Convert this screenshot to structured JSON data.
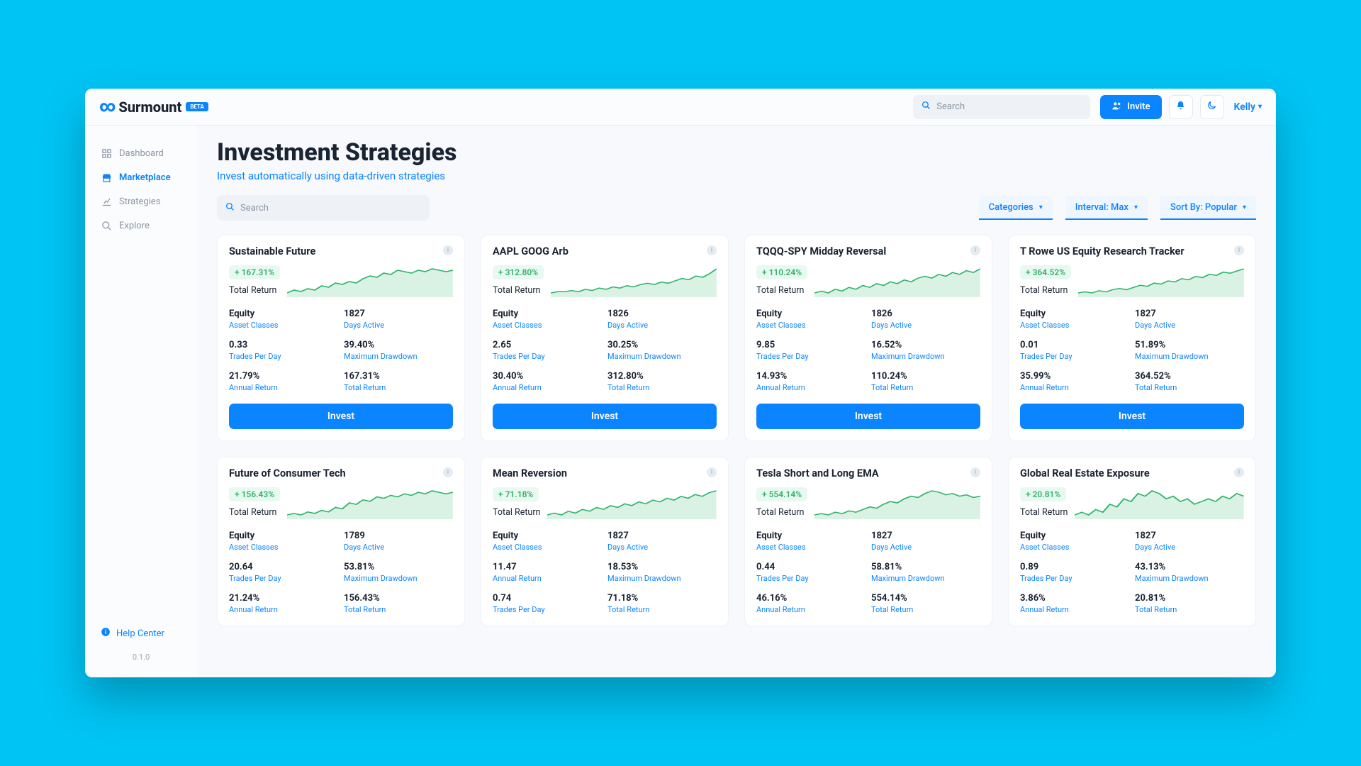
{
  "brand": {
    "name": "Surmount",
    "tag": "BETA"
  },
  "topbar": {
    "search_placeholder": "Search",
    "invite_label": "Invite",
    "user_name": "Kelly"
  },
  "sidebar": {
    "items": [
      {
        "label": "Dashboard",
        "icon": "grid"
      },
      {
        "label": "Marketplace",
        "icon": "store",
        "active": true
      },
      {
        "label": "Strategies",
        "icon": "chart"
      },
      {
        "label": "Explore",
        "icon": "search"
      }
    ],
    "help_label": "Help Center",
    "version": "0.1.0"
  },
  "page": {
    "title": "Investment Strategies",
    "subtitle": "Invest automatically using data-driven strategies",
    "search_placeholder": "Search",
    "filters": {
      "categories": "Categories",
      "interval": "Interval: Max",
      "sort": "Sort By: Popular"
    }
  },
  "stat_labels": {
    "total_return": "Total Return",
    "asset_classes": "Asset Classes",
    "days_active": "Days Active",
    "trades_per_day": "Trades Per Day",
    "max_drawdown": "Maximum Drawdown",
    "annual_return": "Annual Return",
    "total_return2": "Total Return",
    "invest": "Invest"
  },
  "spark_style": {
    "stroke": "#2fb36a",
    "fill": "#d9f2e4",
    "bg": "#ffffff",
    "stroke_width": 1.5
  },
  "cards": [
    {
      "title": "Sustainable Future",
      "return_badge": "+ 167.31%",
      "asset": "Equity",
      "days": "1827",
      "tpd": "0.33",
      "dd": "39.40%",
      "ar": "21.79%",
      "tr": "167.31%",
      "spark": [
        8,
        10,
        9,
        11,
        10,
        13,
        12,
        15,
        14,
        16,
        15,
        18,
        20,
        19,
        22,
        21,
        24,
        23,
        22,
        24,
        23,
        25,
        24,
        23,
        24
      ],
      "has_invest": true
    },
    {
      "title": "AAPL GOOG Arb",
      "return_badge": "+ 312.80%",
      "asset": "Equity",
      "days": "1826",
      "tpd": "2.65",
      "dd": "30.25%",
      "ar": "30.40%",
      "tr": "312.80%",
      "spark": [
        6,
        7,
        7,
        8,
        7,
        9,
        8,
        10,
        9,
        11,
        10,
        12,
        11,
        13,
        14,
        13,
        15,
        14,
        16,
        18,
        17,
        20,
        19,
        22,
        26
      ],
      "has_invest": true
    },
    {
      "title": "TQQQ-SPY Midday Reversal",
      "return_badge": "+ 110.24%",
      "asset": "Equity",
      "days": "1826",
      "tpd": "9.85",
      "dd": "16.52%",
      "ar": "14.93%",
      "tr": "110.24%",
      "spark": [
        7,
        8,
        7,
        9,
        8,
        10,
        9,
        11,
        10,
        12,
        11,
        13,
        12,
        14,
        13,
        15,
        16,
        15,
        17,
        16,
        18,
        17,
        19,
        18,
        20
      ],
      "has_invest": true
    },
    {
      "title": "T Rowe US Equity Research Tracker",
      "return_badge": "+ 364.52%",
      "asset": "Equity",
      "days": "1827",
      "tpd": "0.01",
      "dd": "51.89%",
      "ar": "35.99%",
      "tr": "364.52%",
      "spark": [
        5,
        6,
        5,
        7,
        6,
        8,
        9,
        8,
        10,
        12,
        11,
        14,
        13,
        16,
        15,
        18,
        17,
        20,
        19,
        22,
        21,
        24,
        23,
        25,
        27
      ],
      "has_invest": true
    },
    {
      "title": "Future of Consumer Tech",
      "return_badge": "+ 156.43%",
      "asset": "Equity",
      "days": "1789",
      "tpd": "20.64",
      "dd": "53.81%",
      "ar": "21.24%",
      "tr": "156.43%",
      "spark": [
        6,
        7,
        6,
        8,
        7,
        9,
        8,
        11,
        10,
        14,
        13,
        16,
        15,
        18,
        17,
        19,
        18,
        20,
        19,
        21,
        20,
        22,
        21,
        20,
        21
      ],
      "has_invest": false
    },
    {
      "title": "Mean Reversion",
      "return_badge": "+ 71.18%",
      "asset": "Equity",
      "days": "1827",
      "tpd": "11.47",
      "dd": "18.53%",
      "tpd2": "0.74",
      "tr": "71.18%",
      "ar": "",
      "spark": [
        7,
        8,
        7,
        9,
        8,
        10,
        9,
        11,
        10,
        12,
        11,
        13,
        12,
        14,
        13,
        15,
        14,
        16,
        15,
        17,
        16,
        18,
        17,
        19,
        20
      ],
      "has_invest": false,
      "alt_row3": true
    },
    {
      "title": "Tesla Short and Long EMA",
      "return_badge": "+ 554.14%",
      "asset": "Equity",
      "days": "1827",
      "tpd": "0.44",
      "dd": "58.81%",
      "ar": "46.16%",
      "tr": "554.14%",
      "spark": [
        4,
        5,
        4,
        6,
        5,
        7,
        6,
        8,
        10,
        9,
        12,
        14,
        13,
        16,
        18,
        17,
        20,
        22,
        21,
        19,
        20,
        18,
        19,
        17,
        18
      ],
      "has_invest": false
    },
    {
      "title": "Global Real Estate Exposure",
      "return_badge": "+ 20.81%",
      "asset": "Equity",
      "days": "1827",
      "tpd": "0.89",
      "dd": "43.13%",
      "ar": "3.86%",
      "tr": "20.81%",
      "spark": [
        10,
        11,
        10,
        12,
        11,
        14,
        13,
        16,
        15,
        18,
        17,
        19,
        18,
        16,
        17,
        15,
        16,
        14,
        15,
        16,
        15,
        17,
        16,
        18,
        17
      ],
      "has_invest": false
    }
  ]
}
